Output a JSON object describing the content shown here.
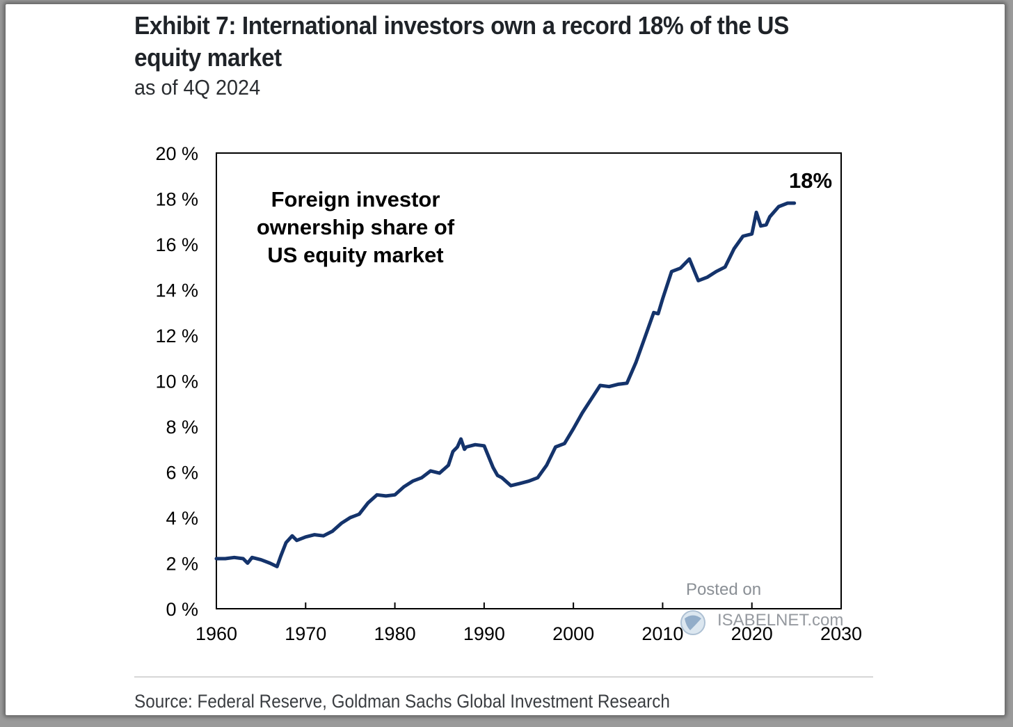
{
  "title": "Exhibit 7: International investors own a record 18% of the US equity market",
  "subtitle": "as of 4Q 2024",
  "source": "Source: Federal Reserve, Goldman Sachs Global Investment Research",
  "watermark": {
    "line1": "Posted on",
    "line2": "ISABELNET.com",
    "icon": "globe-icon"
  },
  "colors": {
    "line": "#14336b",
    "axis": "#000000"
  },
  "chart_data": {
    "type": "line",
    "title": "",
    "xlabel": "",
    "ylabel": "",
    "xlim": [
      1960,
      2030
    ],
    "ylim": [
      0,
      20
    ],
    "x_ticks": [
      1960,
      1970,
      1980,
      1990,
      2000,
      2010,
      2020,
      2030
    ],
    "x_tick_labels": [
      "1960",
      "1970",
      "1980",
      "1990",
      "2000",
      "2010",
      "2020",
      "2030"
    ],
    "y_ticks": [
      0,
      2,
      4,
      6,
      8,
      10,
      12,
      14,
      16,
      18,
      20
    ],
    "y_tick_labels": [
      "0 %",
      "2 %",
      "4 %",
      "6 %",
      "8 %",
      "10 %",
      "12 %",
      "14 %",
      "16 %",
      "18 %",
      "20 %"
    ],
    "grid": false,
    "legend": "none",
    "annotations": [
      {
        "text": "Foreign investor ownership share of US equity market",
        "lines": [
          "Foreign investor",
          "ownership share of",
          "US equity market"
        ]
      },
      {
        "text": "18%"
      }
    ],
    "series": [
      {
        "x": [
          1960,
          1961,
          1962,
          1963,
          1963.5,
          1964,
          1965,
          1966,
          1966.8,
          1967.2,
          1967.8,
          1968.5,
          1969,
          1970,
          1971,
          1972,
          1973,
          1974,
          1975,
          1976,
          1977,
          1978,
          1979,
          1980,
          1981,
          1982,
          1983,
          1984,
          1985,
          1986,
          1986.5,
          1987,
          1987.4,
          1987.8,
          1988,
          1989,
          1990,
          1991,
          1991.5,
          1992,
          1993,
          1994,
          1995,
          1996,
          1997,
          1998,
          1999,
          2000,
          2001,
          2002,
          2003,
          2004,
          2005,
          2006,
          2007,
          2008,
          2009,
          2009.5,
          2010,
          2011,
          2012,
          2013,
          2014,
          2015,
          2016,
          2017,
          2018,
          2019,
          2020,
          2020.5,
          2021,
          2021.6,
          2022,
          2023,
          2024,
          2024.75
        ],
        "values": [
          2.2,
          2.2,
          2.25,
          2.2,
          2.0,
          2.25,
          2.15,
          2.0,
          1.85,
          2.3,
          2.9,
          3.2,
          3.0,
          3.15,
          3.25,
          3.2,
          3.4,
          3.75,
          4.0,
          4.15,
          4.65,
          5.0,
          4.95,
          5.0,
          5.35,
          5.6,
          5.75,
          6.05,
          5.95,
          6.3,
          6.9,
          7.1,
          7.45,
          7.0,
          7.1,
          7.2,
          7.15,
          6.2,
          5.85,
          5.75,
          5.4,
          5.5,
          5.6,
          5.75,
          6.3,
          7.1,
          7.25,
          7.9,
          8.6,
          9.2,
          9.8,
          9.75,
          9.85,
          9.9,
          10.8,
          11.9,
          13.0,
          12.95,
          13.6,
          14.8,
          14.95,
          15.35,
          14.4,
          14.55,
          14.8,
          15.0,
          15.8,
          16.35,
          16.45,
          17.4,
          16.8,
          16.85,
          17.2,
          17.65,
          17.8,
          17.8
        ]
      }
    ]
  }
}
